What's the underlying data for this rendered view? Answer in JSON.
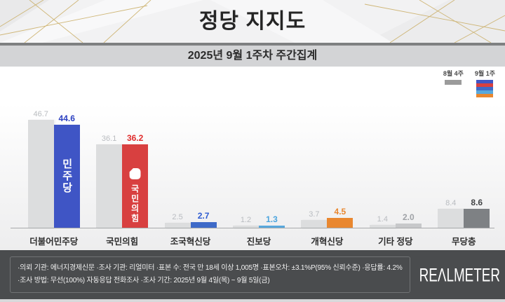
{
  "header": {
    "title": "정당 지지도",
    "subtitle": "2025년 9월 1주차 주간집계"
  },
  "legend": {
    "items": [
      {
        "label": "8월 4주",
        "type": "solid",
        "color": "#9b9b9b"
      },
      {
        "label": "9월 1주",
        "type": "stripes",
        "colors": [
          "#3f55c5",
          "#d84040",
          "#3e6ac8",
          "#58a8dc",
          "#e9872f"
        ]
      }
    ]
  },
  "chart_data": {
    "type": "bar",
    "title": "정당 지지도",
    "subtitle": "2025년 9월 1주차 주간집계",
    "categories": [
      "더불어민주당",
      "국민의힘",
      "조국혁신당",
      "진보당",
      "개혁신당",
      "기타 정당",
      "무당층"
    ],
    "category_slugs": [
      "democratic-party",
      "people-power-party",
      "rebuilding-korea-party",
      "progressive-party",
      "reform-new-party",
      "other-parties",
      "non-partisan"
    ],
    "series": [
      {
        "name": "8월 4주",
        "values": [
          46.7,
          36.1,
          2.5,
          1.2,
          3.7,
          1.4,
          8.4
        ]
      },
      {
        "name": "9월 1주",
        "values": [
          44.6,
          36.2,
          2.7,
          1.3,
          4.5,
          2.0,
          8.6
        ]
      }
    ],
    "ylim": [
      0,
      50
    ],
    "grid": false,
    "legend_position": "top-right",
    "unit": "%",
    "prev_bar_color": "#dcddde",
    "prev_value_color": "#b9bcc0",
    "cur_bar_colors": [
      "#3f55c5",
      "#d84040",
      "#3e6ac8",
      "#58a8dc",
      "#e9872f",
      "#c7c8ca",
      "#7e8184"
    ],
    "cur_value_colors": [
      "#2b3fc1",
      "#e02b2b",
      "#2d5bd1",
      "#4ba4de",
      "#e9872f",
      "#9fa2a6",
      "#424446"
    ],
    "bar_overlay_texts": [
      "민주당",
      "국민의힘",
      "",
      "",
      "",
      "",
      ""
    ]
  },
  "footer": {
    "line1": "·의뢰 기관: 에너지경제신문  ·조사 기관: 리얼미터 ·표본 수: 전국 만 18세 이상 1,005명 ·표본오차: ±3.1%P(95% 신뢰수준) ·응답률: 4.2%",
    "line2": "·조사 방법: 무선(100%) 자동응답 전화조사 ·조사 기간: 2025년 9월 4일(목) ~ 9월 5일(금)",
    "brand": "REΛLMETER"
  },
  "colors": {
    "header_bg": "#f2f2f3",
    "header_line_gold": "#c9ac62",
    "divider": "#7e8081",
    "subtitle_band": "#d3d4d6",
    "footer_bg": "#4a4c4e",
    "axis": "#a7a9ab"
  }
}
